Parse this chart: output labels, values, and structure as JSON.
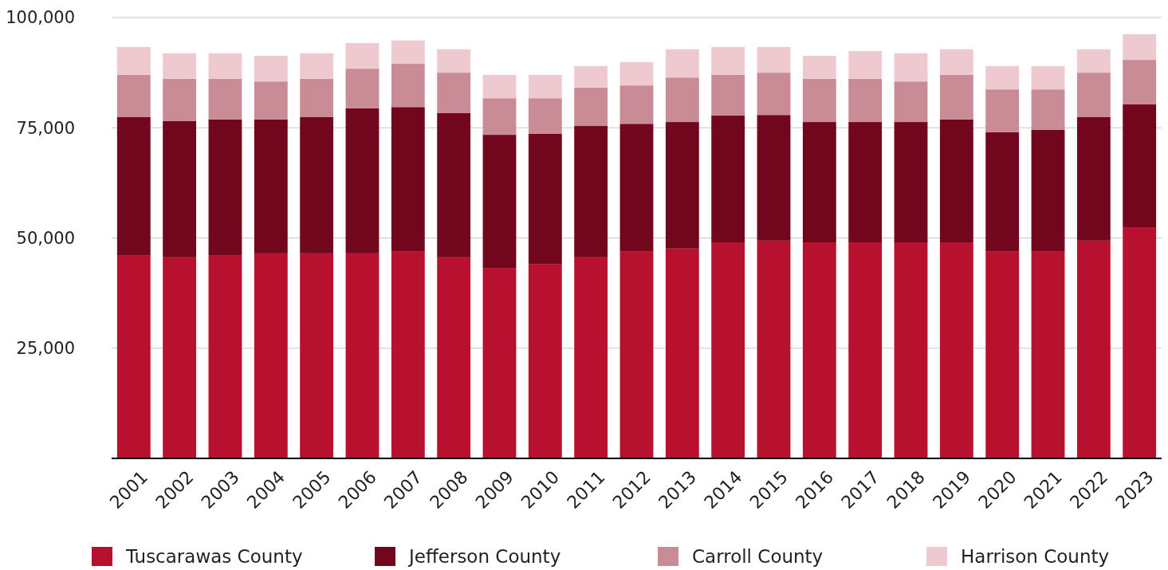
{
  "chart_data": {
    "type": "bar",
    "stacked": true,
    "categories": [
      "2001",
      "2002",
      "2003",
      "2004",
      "2005",
      "2006",
      "2007",
      "2008",
      "2009",
      "2010",
      "2011",
      "2012",
      "2013",
      "2014",
      "2015",
      "2016",
      "2017",
      "2018",
      "2019",
      "2020",
      "2021",
      "2022",
      "2023"
    ],
    "series": [
      {
        "name": "Tuscarawas County",
        "color": "#b8102f",
        "values": [
          46100,
          45600,
          46100,
          46500,
          46500,
          46500,
          47000,
          45600,
          43200,
          44100,
          45600,
          47000,
          47600,
          49000,
          49400,
          49000,
          49000,
          49000,
          49000,
          47000,
          47000,
          49400,
          52300
        ]
      },
      {
        "name": "Jefferson County",
        "color": "#72061c",
        "values": [
          31300,
          30900,
          30800,
          30400,
          30900,
          32900,
          32700,
          32700,
          30200,
          29500,
          29800,
          28900,
          28700,
          28800,
          28500,
          27300,
          27300,
          27300,
          27900,
          27000,
          27500,
          28000,
          28000
        ]
      },
      {
        "name": "Carroll County",
        "color": "#c98c96",
        "values": [
          9600,
          9600,
          9200,
          8600,
          8700,
          9000,
          9800,
          9200,
          8300,
          8100,
          8700,
          8700,
          10100,
          9200,
          9600,
          9800,
          9800,
          9200,
          10100,
          9700,
          9200,
          10100,
          10100
        ]
      },
      {
        "name": "Harrison County",
        "color": "#efc9d0",
        "values": [
          6300,
          5800,
          5800,
          5800,
          5800,
          5800,
          5300,
          5300,
          5300,
          5300,
          4900,
          5300,
          6400,
          6300,
          5800,
          5200,
          6300,
          6400,
          5800,
          5300,
          5300,
          5300,
          5800
        ]
      }
    ],
    "ylim": [
      0,
      100000
    ],
    "yticks": [
      {
        "value": 25000,
        "label": "25,000"
      },
      {
        "value": 50000,
        "label": "50,000"
      },
      {
        "value": 75000,
        "label": "75,000"
      },
      {
        "value": 100000,
        "label": "100,000"
      }
    ],
    "grid": "y",
    "legend": "bottom"
  }
}
